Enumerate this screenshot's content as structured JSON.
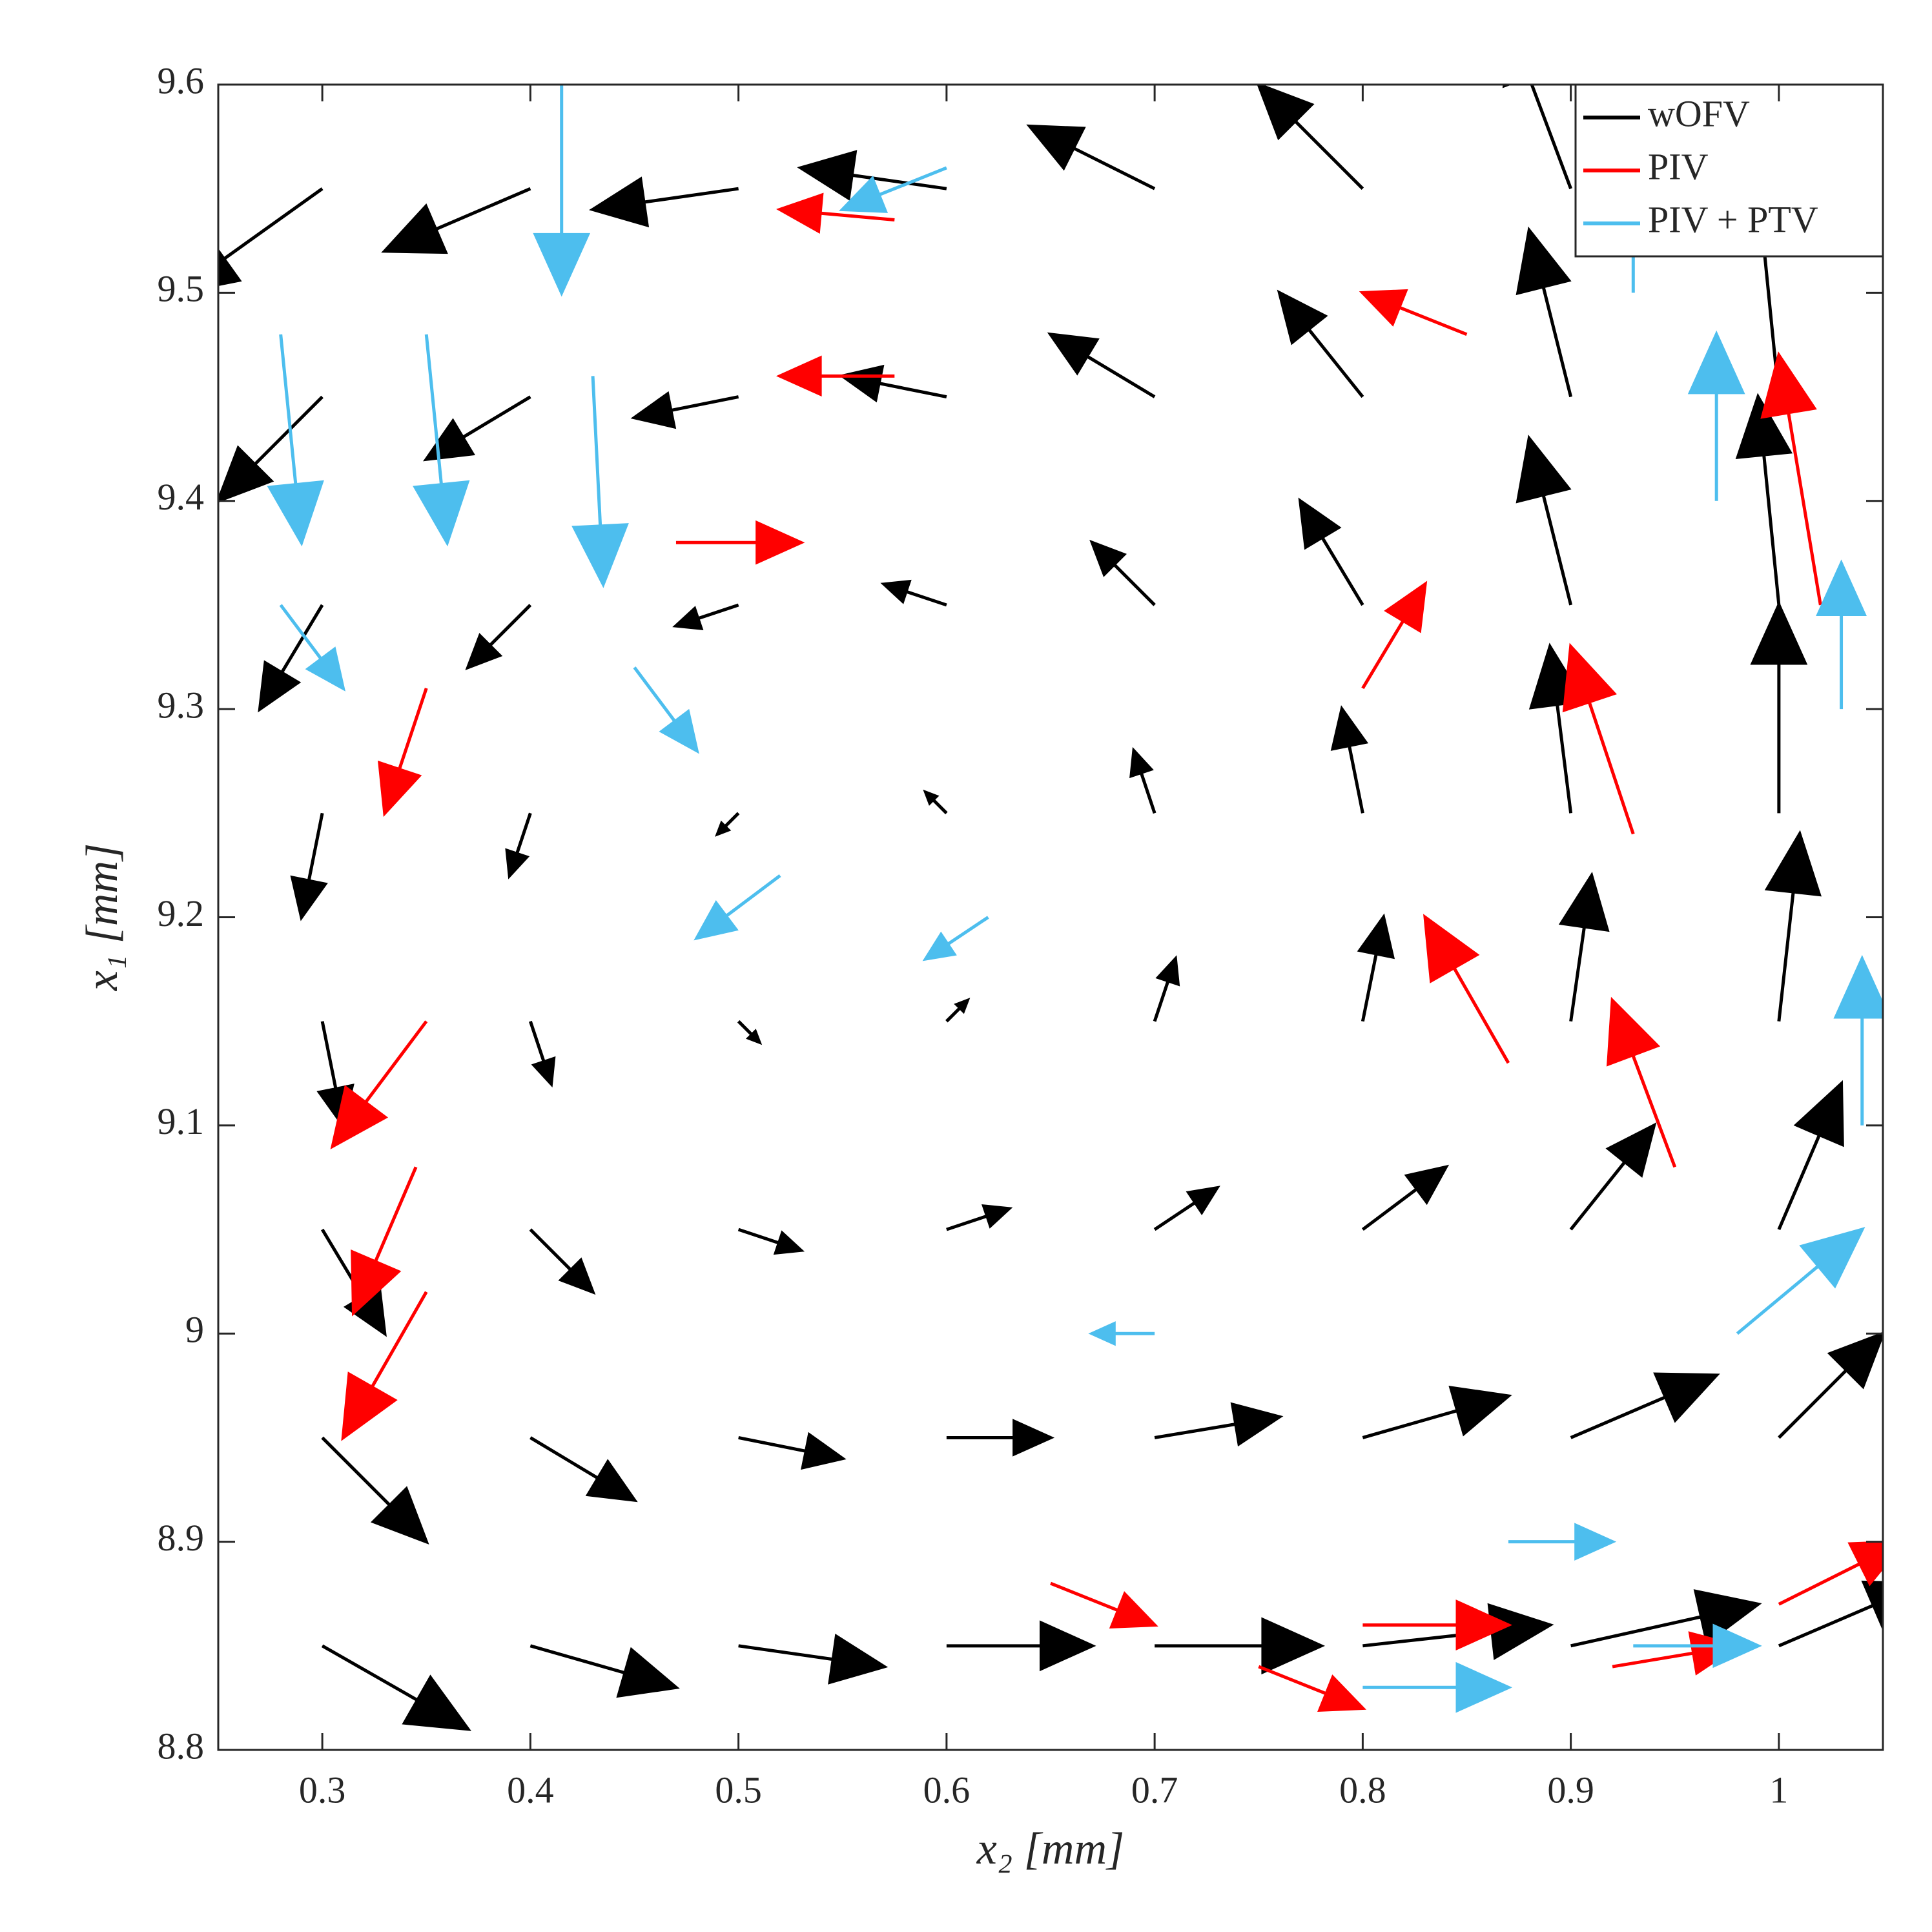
{
  "chart_data": {
    "type": "quiver",
    "xlabel": "x₂ [mm]",
    "ylabel": "x₁ [mm]",
    "xlim": [
      0.25,
      1.05
    ],
    "ylim": [
      8.8,
      9.6
    ],
    "xticks": [
      0.3,
      0.4,
      0.5,
      0.6,
      0.7,
      0.8,
      0.9,
      1
    ],
    "yticks": [
      8.8,
      8.9,
      9,
      9.1,
      9.2,
      9.3,
      9.4,
      9.5,
      9.6
    ],
    "legend": "upper right",
    "series": [
      {
        "name": "wOFV",
        "color": "#000000",
        "x": [
          0.3,
          0.4,
          0.5,
          0.6,
          0.7,
          0.8,
          0.9,
          1.0
        ],
        "y": [
          9.55,
          9.45,
          9.35,
          9.25,
          9.15,
          9.05,
          8.95,
          8.85
        ],
        "u": [
          [
            -0.07,
            -0.07,
            -0.07,
            -0.07,
            -0.06,
            -0.05,
            -0.03,
            -0.01
          ],
          [
            -0.05,
            -0.05,
            -0.05,
            -0.05,
            -0.05,
            -0.04,
            -0.02,
            -0.01
          ],
          [
            -0.03,
            -0.03,
            -0.03,
            -0.03,
            -0.03,
            -0.03,
            -0.02,
            -0.01
          ],
          [
            -0.01,
            -0.01,
            -0.01,
            -0.01,
            -0.01,
            -0.01,
            -0.01,
            0
          ],
          [
            0.01,
            0.01,
            0.01,
            0.01,
            0.01,
            0.01,
            0.01,
            0.01
          ],
          [
            0.03,
            0.03,
            0.03,
            0.03,
            0.03,
            0.04,
            0.04,
            0.03
          ],
          [
            0.05,
            0.05,
            0.05,
            0.05,
            0.06,
            0.07,
            0.07,
            0.05
          ],
          [
            0.07,
            0.07,
            0.07,
            0.07,
            0.08,
            0.09,
            0.09,
            0.07
          ]
        ],
        "v": [
          [
            -0.05,
            -0.03,
            -0.01,
            0.01,
            0.03,
            0.05,
            0.08,
            0.1
          ],
          [
            -0.05,
            -0.03,
            -0.01,
            0.01,
            0.03,
            0.05,
            0.08,
            0.1
          ],
          [
            -0.05,
            -0.03,
            -0.01,
            0.01,
            0.03,
            0.05,
            0.08,
            0.1
          ],
          [
            -0.05,
            -0.03,
            -0.01,
            0.01,
            0.03,
            0.05,
            0.08,
            0.1
          ],
          [
            -0.05,
            -0.03,
            -0.01,
            0.01,
            0.03,
            0.05,
            0.07,
            0.09
          ],
          [
            -0.05,
            -0.03,
            -0.01,
            0.01,
            0.02,
            0.03,
            0.05,
            0.07
          ],
          [
            -0.05,
            -0.03,
            -0.01,
            0,
            0.01,
            0.02,
            0.03,
            0.05
          ],
          [
            -0.04,
            -0.02,
            -0.01,
            0,
            0,
            0.01,
            0.02,
            0.03
          ]
        ]
      },
      {
        "name": "PIV",
        "color": "#ff0000",
        "x": [
          0.47,
          0.575,
          0.575,
          0.35,
          0.35,
          0.345,
          0.35,
          0.8,
          0.8,
          0.87,
          0.93,
          0.95,
          1.02,
          0.92,
          1.0,
          0.85,
          0.75,
          0.65
        ],
        "y": [
          9.38,
          9.535,
          9.46,
          9.31,
          9.15,
          9.08,
          9.02,
          8.86,
          9.31,
          9.13,
          9.24,
          9.08,
          9.35,
          8.84,
          8.87,
          9.48,
          8.84,
          8.88
        ],
        "u": [
          0.06,
          -0.055,
          -0.055,
          -0.02,
          -0.045,
          -0.03,
          -0.04,
          0.07,
          0.03,
          -0.04,
          -0.03,
          -0.03,
          -0.02,
          0.06,
          0.06,
          -0.05,
          0.05,
          0.05
        ],
        "v": [
          0,
          0.005,
          0,
          -0.06,
          -0.06,
          -0.07,
          -0.07,
          0,
          0.05,
          0.07,
          0.09,
          0.08,
          0.12,
          0.01,
          0.03,
          0.02,
          -0.02,
          -0.02
        ]
      },
      {
        "name": "PIV + PTV",
        "color": "#4dbeee",
        "x": [
          0.415,
          0.35,
          0.28,
          0.43,
          0.6,
          0.28,
          0.52,
          0.62,
          0.87,
          0.8,
          0.93,
          1.03,
          0.97,
          0.93,
          0.98,
          1.04,
          0.45,
          0.7
        ],
        "y": [
          9.6,
          9.48,
          9.48,
          9.46,
          9.56,
          9.35,
          9.22,
          9.2,
          8.9,
          8.83,
          8.85,
          9.3,
          9.4,
          9.5,
          9.0,
          9.1,
          9.32,
          9.0
        ],
        "u": [
          0,
          0.01,
          0.01,
          0.005,
          -0.05,
          0.03,
          -0.04,
          -0.03,
          0.05,
          0.07,
          0.06,
          0,
          0,
          0,
          0.06,
          0,
          0.03,
          -0.03
        ],
        "v": [
          -0.1,
          -0.1,
          -0.1,
          -0.1,
          -0.02,
          -0.04,
          -0.03,
          -0.02,
          0,
          0,
          0,
          0.07,
          0.08,
          0.07,
          0.05,
          0.08,
          -0.04,
          0
        ]
      }
    ]
  }
}
